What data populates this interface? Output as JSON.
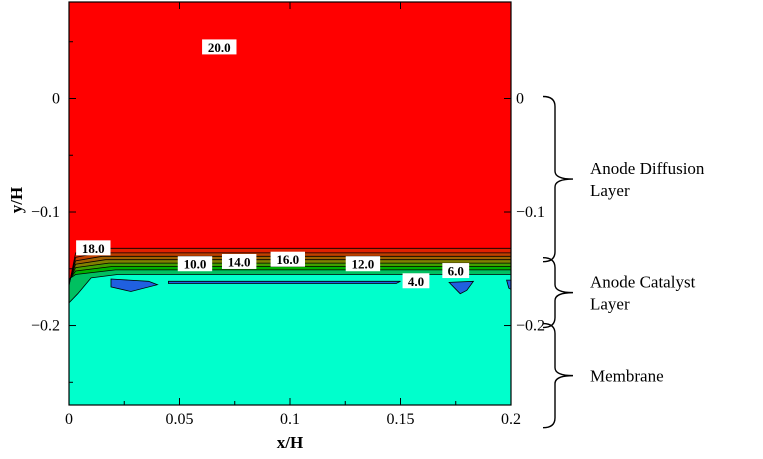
{
  "chart_data": {
    "type": "contour",
    "xlabel": "x/H",
    "ylabel": "y/H",
    "xlim": [
      0,
      0.2
    ],
    "ylim": [
      -0.27,
      0.085
    ],
    "x_ticks": [
      {
        "value": 0,
        "label": "0"
      },
      {
        "value": 0.05,
        "label": "0.05"
      },
      {
        "value": 0.1,
        "label": "0.1"
      },
      {
        "value": 0.15,
        "label": "0.15"
      },
      {
        "value": 0.2,
        "label": "0.2"
      }
    ],
    "y_ticks": [
      {
        "value": 0,
        "label": "0"
      },
      {
        "value": -0.1,
        "label": "−0.1"
      },
      {
        "value": -0.2,
        "label": "−0.2"
      }
    ],
    "right_ticks": [
      {
        "value": 0,
        "label": "0"
      },
      {
        "value": -0.1,
        "label": "−0.1"
      },
      {
        "value": -0.2,
        "label": "−0.2"
      }
    ],
    "contour_labels": [
      {
        "value": 20.0,
        "label": "20.0",
        "x": 0.068,
        "y": 0.045
      },
      {
        "value": 18.0,
        "label": "18.0",
        "x": 0.011,
        "y": -0.132
      },
      {
        "value": 10.0,
        "label": "10.0",
        "x": 0.057,
        "y": -0.146
      },
      {
        "value": 14.0,
        "label": "14.0",
        "x": 0.077,
        "y": -0.144
      },
      {
        "value": 16.0,
        "label": "16.0",
        "x": 0.099,
        "y": -0.142
      },
      {
        "value": 12.0,
        "label": "12.0",
        "x": 0.133,
        "y": -0.146
      },
      {
        "value": 4.0,
        "label": "4.0",
        "x": 0.157,
        "y": -0.161
      },
      {
        "value": 6.0,
        "label": "6.0",
        "x": 0.175,
        "y": -0.152
      }
    ],
    "regions": [
      {
        "label": "Anode Diffusion Layer",
        "lines": [
          "Anode Diffusion",
          "Layer"
        ],
        "y_top": 0.0,
        "y_bottom": -0.142
      },
      {
        "label": "Anode Catalyst Layer",
        "lines": [
          "Anode Catalyst",
          "Layer"
        ],
        "y_top": -0.142,
        "y_bottom": -0.2
      },
      {
        "label": "Membrane",
        "lines": [
          "Membrane"
        ],
        "y_top": -0.2,
        "y_bottom": -0.29
      }
    ],
    "colors": {
      "high": "#ff0000",
      "low": "#00ffcc",
      "min_pocket": "#2060e0",
      "band": [
        "#e02000",
        "#c04000",
        "#a06000",
        "#808000",
        "#40a000",
        "#00b000",
        "#00c060"
      ]
    }
  }
}
